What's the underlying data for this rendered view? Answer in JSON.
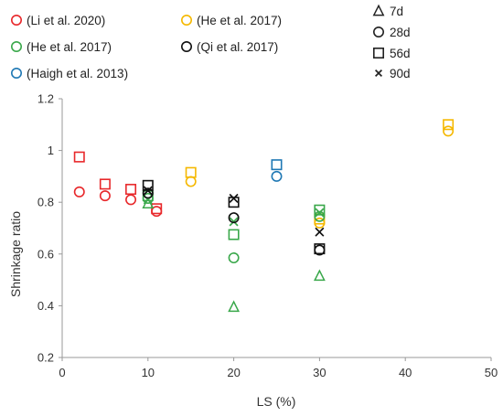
{
  "chart_data": {
    "type": "scatter",
    "title": "",
    "xlabel": "LS (%)",
    "ylabel": "Shrinkage ratio",
    "xlim": [
      0,
      50
    ],
    "ylim": [
      0.2,
      1.2
    ],
    "xticks": [
      0,
      10,
      20,
      30,
      40,
      50
    ],
    "yticks": [
      0.2,
      0.4,
      0.6,
      0.8,
      1.0,
      1.2
    ],
    "xtick_labels": [
      "0",
      "10",
      "20",
      "30",
      "40",
      "50"
    ],
    "ytick_labels": [
      "0.2",
      "0.4",
      "0.6",
      "0.8",
      "1",
      "1.2"
    ],
    "grid": false,
    "legend_placement": "top",
    "sources": [
      {
        "name": "(Li et al. 2020)",
        "color": "#e8282b"
      },
      {
        "name": "(He et al. 2017)",
        "color": "#f5b800"
      },
      {
        "name": "(He et al. 2017)",
        "color": "#3aa84b"
      },
      {
        "name": "(Qi et al. 2017)",
        "color": "#111111"
      },
      {
        "name": "(Haigh et al. 2013)",
        "color": "#1f78b4"
      }
    ],
    "ages": [
      {
        "name": "7d",
        "marker": "triangle"
      },
      {
        "name": "28d",
        "marker": "circle"
      },
      {
        "name": "56d",
        "marker": "square"
      },
      {
        "name": "90d",
        "marker": "cross"
      }
    ],
    "series": [
      {
        "source": 0,
        "age": 1,
        "points": [
          [
            2,
            0.84
          ],
          [
            5,
            0.825
          ],
          [
            8,
            0.81
          ],
          [
            11,
            0.765
          ]
        ]
      },
      {
        "source": 0,
        "age": 2,
        "points": [
          [
            2,
            0.975
          ],
          [
            5,
            0.87
          ],
          [
            8,
            0.85
          ],
          [
            11,
            0.775
          ]
        ]
      },
      {
        "source": 1,
        "age": 1,
        "points": [
          [
            15,
            0.88
          ],
          [
            30,
            0.72
          ],
          [
            45,
            1.075
          ]
        ]
      },
      {
        "source": 1,
        "age": 2,
        "points": [
          [
            15,
            0.915
          ],
          [
            30,
            0.735
          ],
          [
            45,
            1.1
          ]
        ]
      },
      {
        "source": 2,
        "age": 0,
        "points": [
          [
            10,
            0.795
          ],
          [
            20,
            0.395
          ],
          [
            30,
            0.515
          ]
        ]
      },
      {
        "source": 2,
        "age": 1,
        "points": [
          [
            10,
            0.815
          ],
          [
            20,
            0.585
          ],
          [
            30,
            0.745
          ]
        ]
      },
      {
        "source": 2,
        "age": 2,
        "points": [
          [
            10,
            0.825
          ],
          [
            20,
            0.675
          ],
          [
            30,
            0.77
          ]
        ]
      },
      {
        "source": 2,
        "age": 3,
        "points": [
          [
            10,
            0.81
          ],
          [
            20,
            0.725
          ],
          [
            30,
            0.76
          ]
        ]
      },
      {
        "source": 3,
        "age": 1,
        "points": [
          [
            10,
            0.835
          ],
          [
            20,
            0.74
          ],
          [
            30,
            0.615
          ]
        ]
      },
      {
        "source": 3,
        "age": 2,
        "points": [
          [
            10,
            0.865
          ],
          [
            20,
            0.8
          ],
          [
            30,
            0.62
          ]
        ]
      },
      {
        "source": 3,
        "age": 3,
        "points": [
          [
            10,
            0.845
          ],
          [
            20,
            0.815
          ],
          [
            30,
            0.685
          ]
        ]
      },
      {
        "source": 4,
        "age": 1,
        "points": [
          [
            25,
            0.9
          ]
        ]
      },
      {
        "source": 4,
        "age": 2,
        "points": [
          [
            25,
            0.945
          ]
        ]
      }
    ]
  }
}
